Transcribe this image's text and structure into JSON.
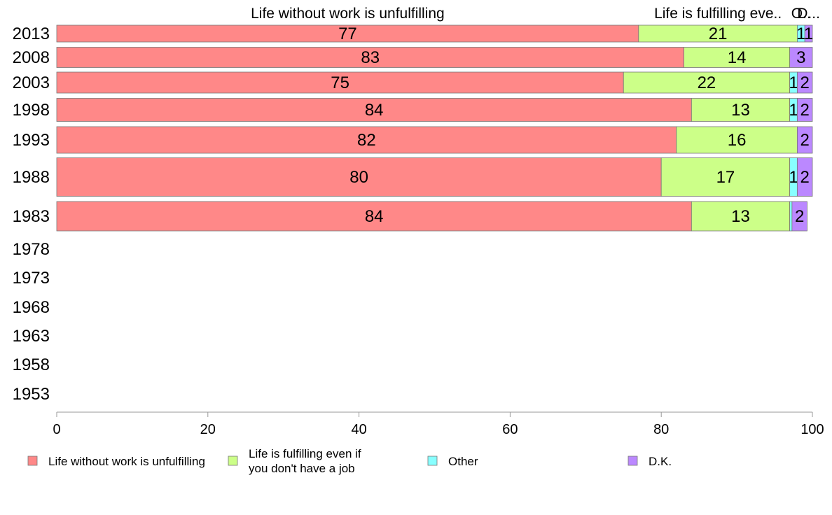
{
  "chart_data": {
    "type": "bar",
    "orientation": "horizontal",
    "stacked": true,
    "categories": [
      "2013",
      "2008",
      "2003",
      "1998",
      "1993",
      "1988",
      "1983",
      "1978",
      "1973",
      "1968",
      "1963",
      "1958",
      "1953"
    ],
    "series": [
      {
        "name": "Life without work is unfulfilling",
        "values": [
          77,
          83,
          75,
          84,
          82,
          80,
          84,
          null,
          null,
          null,
          null,
          null,
          null
        ]
      },
      {
        "name": "Life is fulfilling even if you don't have a job",
        "values": [
          21,
          14,
          22,
          13,
          16,
          17,
          13,
          null,
          null,
          null,
          null,
          null,
          null
        ]
      },
      {
        "name": "Other",
        "values": [
          1,
          0,
          1,
          1,
          0,
          1,
          0.3,
          null,
          null,
          null,
          null,
          null,
          null
        ]
      },
      {
        "name": "D.K.",
        "values": [
          1,
          3,
          2,
          2,
          2,
          2,
          2,
          null,
          null,
          null,
          null,
          null,
          null
        ]
      }
    ],
    "series_colors": [
      "#ff8888",
      "#ccff88",
      "#88ffff",
      "#bb88ff"
    ],
    "xlim": [
      0,
      100
    ],
    "xticks": [
      0,
      20,
      40,
      60,
      80,
      100
    ],
    "top_labels": [
      "Life without work is unfulfilling",
      "Life is fulfilling eve..",
      "O..",
      "D..."
    ],
    "legend_position": "bottom",
    "legend_labels": [
      [
        "Life without work is unfulfilling"
      ],
      [
        "Life is fulfilling even if",
        "you don't have a job"
      ],
      [
        "Other"
      ],
      [
        "D.K."
      ]
    ],
    "grid": false
  }
}
